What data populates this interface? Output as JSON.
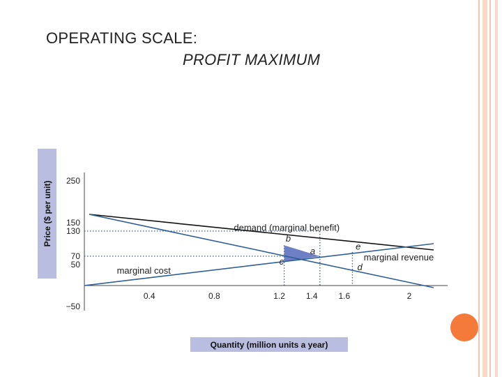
{
  "slide": {
    "title_line1": "OPERATING SCALE:",
    "title_line2": "PROFIT MAXIMUM"
  },
  "colors": {
    "accent_orange": "#f47a3a",
    "stripe": "#f6c4ac",
    "axis_label_bg": "#b9bde0",
    "blue_line": "#2f5f9a",
    "triangle": "#6f7fc4"
  },
  "chart_data": {
    "type": "line",
    "title": "",
    "xlabel": "Quantity (million units a year)",
    "ylabel": "Price ($ per unit)",
    "xlim": [
      0,
      2.2
    ],
    "ylim": [
      -50,
      270
    ],
    "x_ticks": [
      0.4,
      0.8,
      1.2,
      1.4,
      1.6,
      2
    ],
    "x_tick_labels": [
      "0.4",
      "0.8",
      "1.2",
      "1.4",
      "1.6",
      "2"
    ],
    "y_ticks": [
      250,
      150,
      130,
      70,
      50,
      -50
    ],
    "y_tick_labels": [
      "250",
      "150",
      "130",
      "70",
      "50",
      "−50"
    ],
    "series": [
      {
        "name": "demand (marginal benefit)",
        "color": "#111111",
        "x": [
          0.03,
          2.15
        ],
        "y": [
          170,
          85
        ]
      },
      {
        "name": "marginal revenue",
        "color": "#2f5f9a",
        "x": [
          0.03,
          2.15
        ],
        "y": [
          170,
          -5
        ]
      },
      {
        "name": "marginal cost",
        "color": "#2f5f9a",
        "x": [
          0,
          2.15
        ],
        "y": [
          0,
          100
        ]
      }
    ],
    "guides": {
      "h": [
        {
          "y": 130,
          "x_end": 1.45
        },
        {
          "y": 70,
          "x_end": 1.45
        }
      ],
      "v": [
        {
          "x": 1.23,
          "y_top": 96,
          "y_bot": 0
        },
        {
          "x": 1.45,
          "y_top": 130,
          "y_bot": 0
        },
        {
          "x": 1.65,
          "y_top": 80,
          "y_bot": 0
        }
      ]
    },
    "shaded_triangle": {
      "x": [
        1.23,
        1.23,
        1.45
      ],
      "y": [
        96,
        57,
        70
      ]
    },
    "point_labels": [
      {
        "text": "b",
        "x": 1.24,
        "y": 105
      },
      {
        "text": "a",
        "x": 1.39,
        "y": 75
      },
      {
        "text": "e",
        "x": 1.67,
        "y": 86
      },
      {
        "text": "c",
        "x": 1.2,
        "y": 50
      },
      {
        "text": "d",
        "x": 1.68,
        "y": 37
      }
    ],
    "curve_labels": [
      {
        "series": "demand (marginal benefit)",
        "text": "demand (marginal benefit)",
        "x": 0.92,
        "y": 131
      },
      {
        "series": "marginal revenue",
        "text": "marginal revenue",
        "x": 1.72,
        "y": 60
      },
      {
        "series": "marginal cost",
        "text": "marginal cost",
        "x": 0.2,
        "y": 28
      }
    ]
  }
}
